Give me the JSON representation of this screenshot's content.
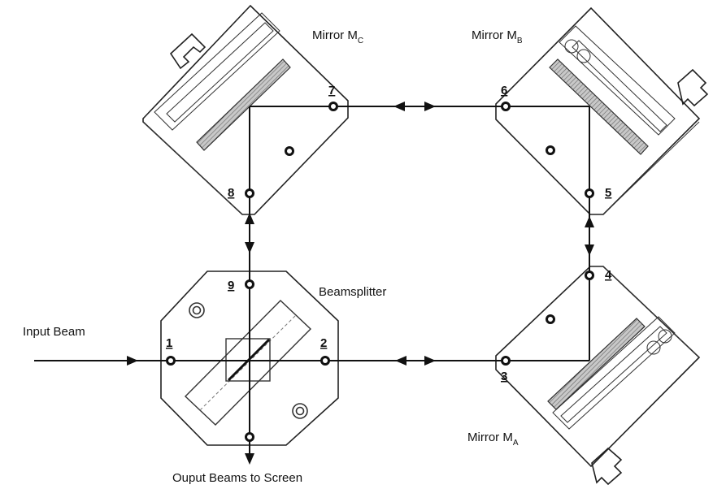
{
  "labels": {
    "mirror_c_prefix": "Mirror M",
    "mirror_c_sub": "C",
    "mirror_b_prefix": "Mirror M",
    "mirror_b_sub": "B",
    "mirror_a_prefix": "Mirror M",
    "mirror_a_sub": "A",
    "beamsplitter": "Beamsplitter",
    "input_beam": "Input Beam",
    "output": "Ouput Beams to Screen"
  },
  "ports": [
    "1",
    "2",
    "3",
    "4",
    "5",
    "6",
    "7",
    "8",
    "9"
  ]
}
